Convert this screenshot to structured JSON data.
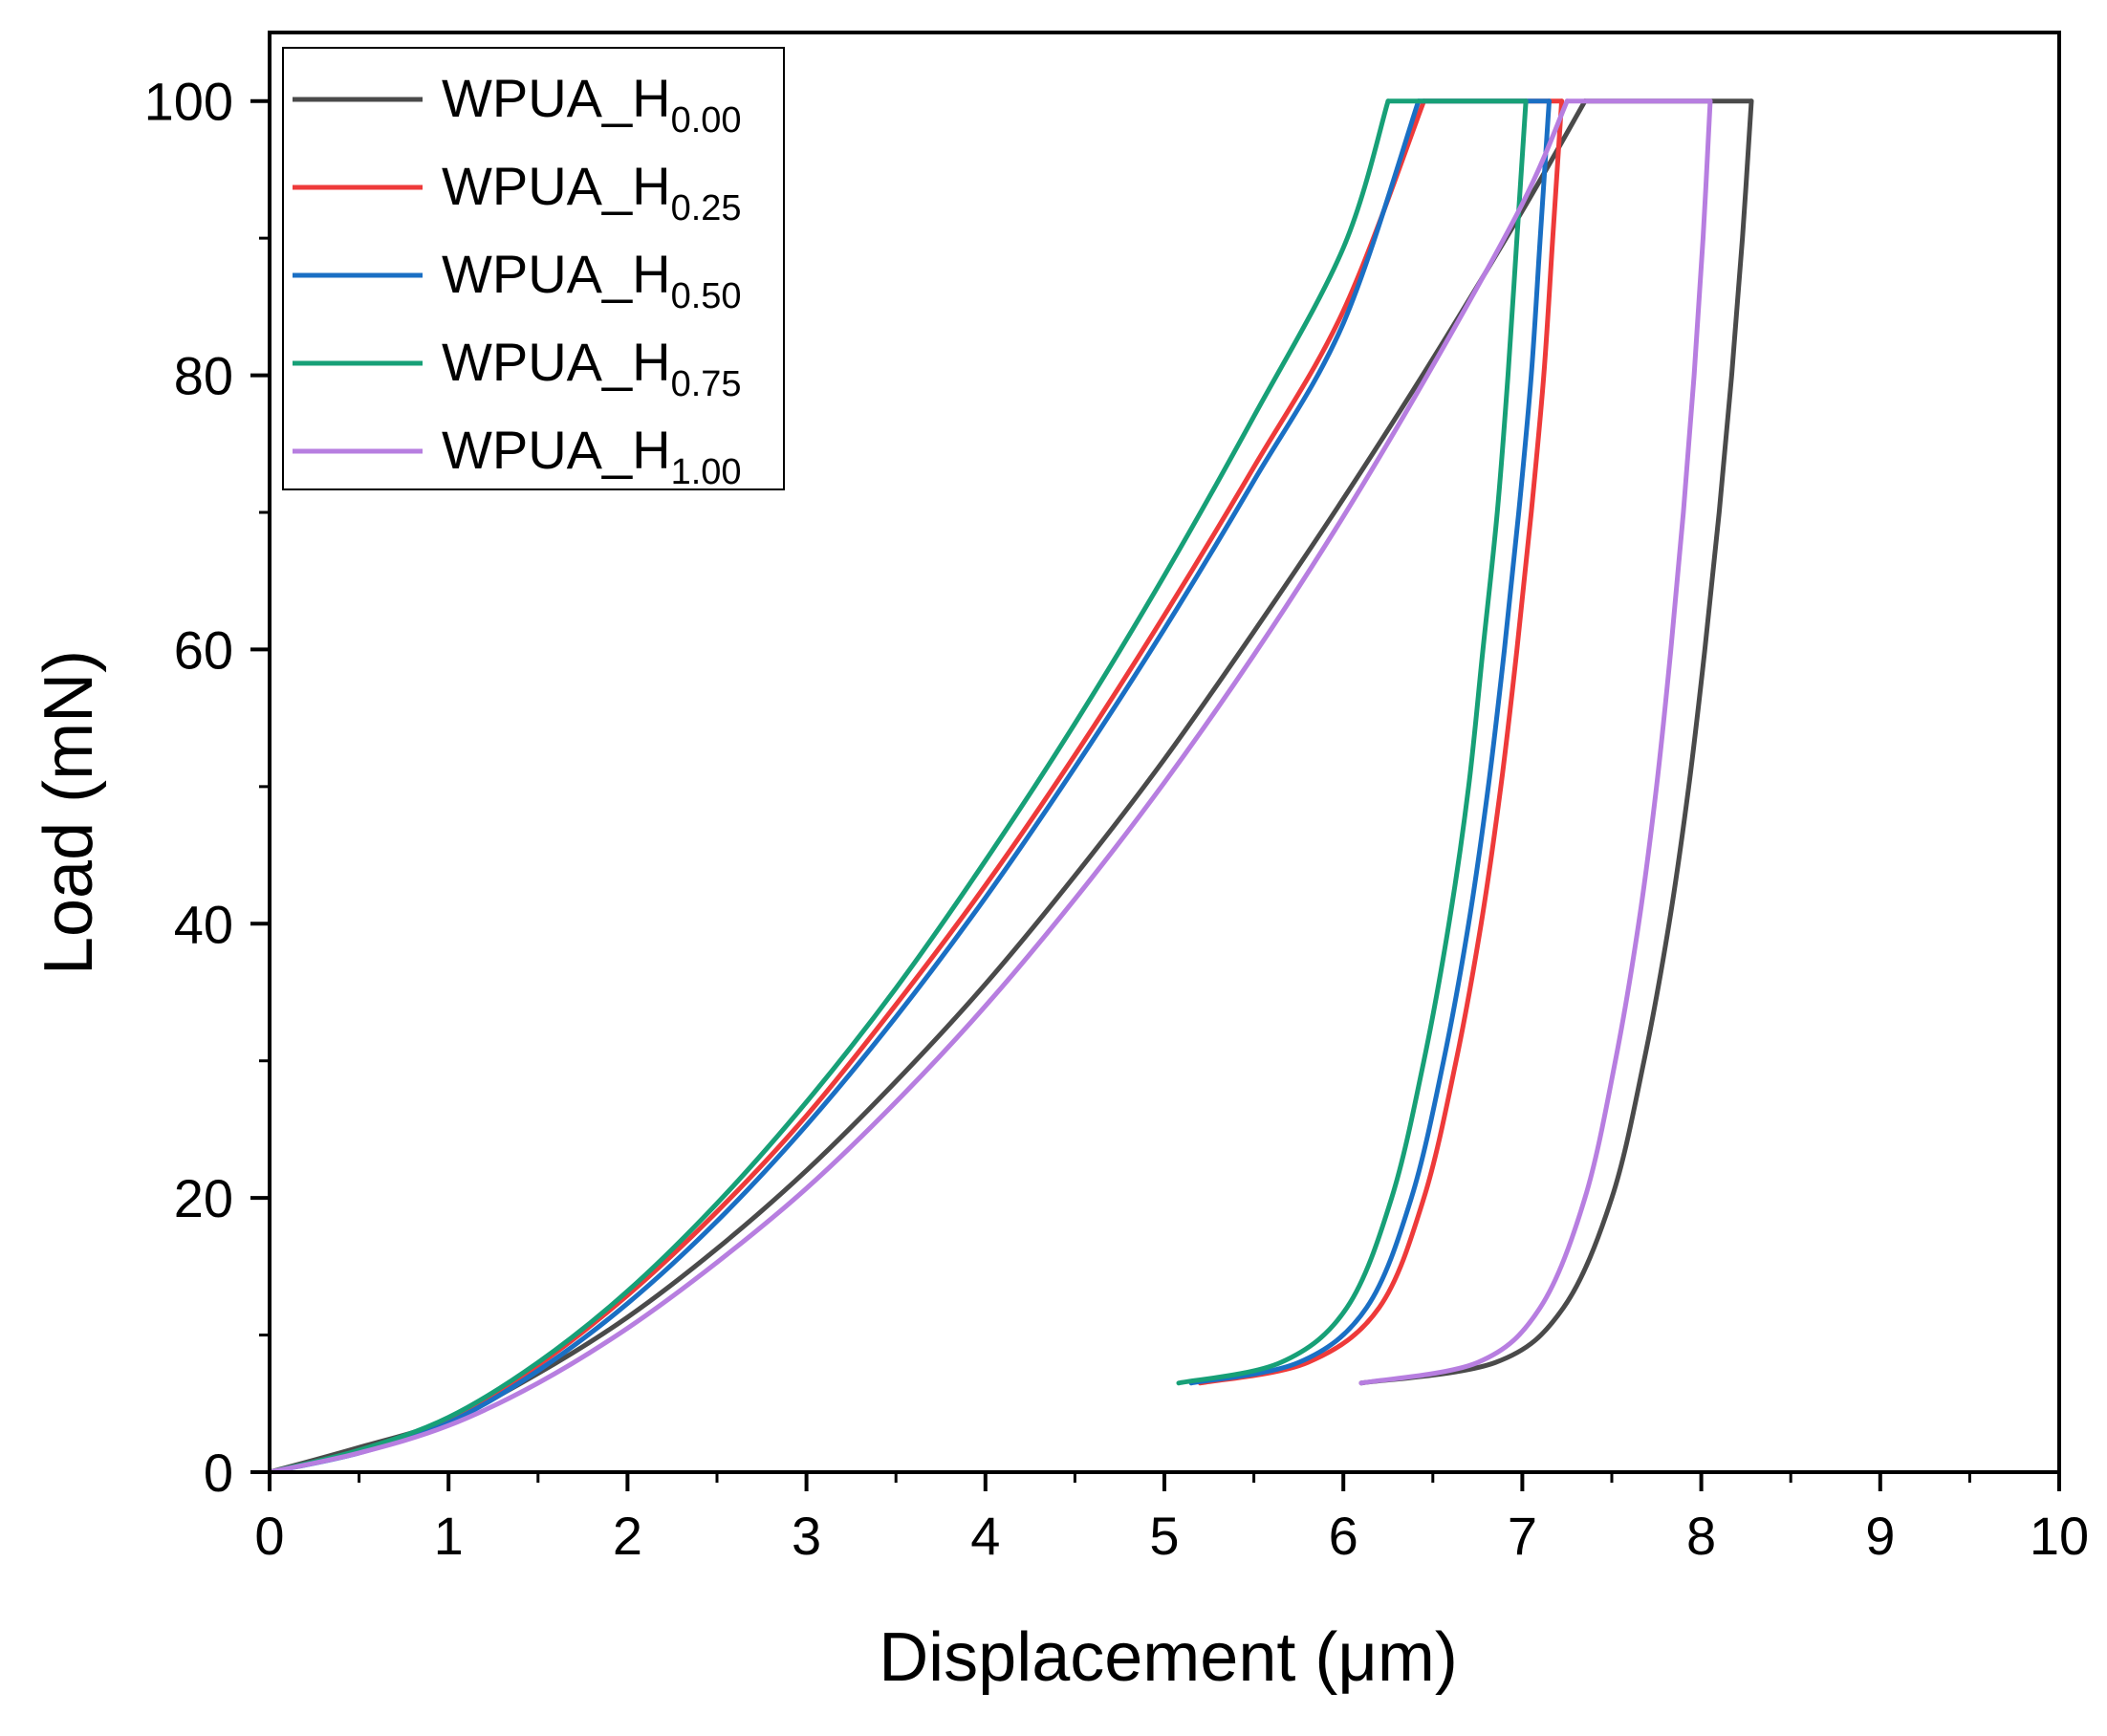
{
  "chart_data": {
    "type": "line",
    "title": "",
    "xlabel": "Displacement (μm)",
    "ylabel": "Load (mN)",
    "xlim": [
      0,
      10
    ],
    "ylim": [
      0,
      105
    ],
    "x_ticks": [
      0,
      1,
      2,
      3,
      4,
      5,
      6,
      7,
      8,
      9,
      10
    ],
    "x_tick_labels": [
      "0",
      "1",
      "2",
      "3",
      "4",
      "5",
      "6",
      "7",
      "8",
      "9",
      "10"
    ],
    "y_ticks": [
      0,
      20,
      40,
      60,
      80,
      100
    ],
    "y_tick_labels": [
      "0",
      "20",
      "40",
      "60",
      "80",
      "100"
    ],
    "grid": false,
    "legend_position": "top-left",
    "series": [
      {
        "name": "WPUA_H0.00",
        "label_base": "WPUA_H",
        "label_sub": "0.00",
        "color": "#4a4a4a",
        "loading": [
          [
            0,
            0
          ],
          [
            0.5,
            1.8
          ],
          [
            1,
            3.8
          ],
          [
            1.5,
            7.2
          ],
          [
            2,
            11.3
          ],
          [
            2.5,
            16.3
          ],
          [
            3,
            22
          ],
          [
            3.5,
            28.5
          ],
          [
            4,
            35.6
          ],
          [
            4.5,
            43.5
          ],
          [
            5,
            52
          ],
          [
            5.5,
            61.3
          ],
          [
            6,
            71
          ],
          [
            6.5,
            81.2
          ],
          [
            7,
            92
          ],
          [
            7.35,
            100
          ]
        ],
        "hold": [
          [
            7.35,
            100
          ],
          [
            8.28,
            100
          ]
        ],
        "unloading": [
          [
            8.28,
            100
          ],
          [
            8.23,
            90
          ],
          [
            8.17,
            80
          ],
          [
            8.1,
            70
          ],
          [
            8.02,
            60
          ],
          [
            7.93,
            50
          ],
          [
            7.82,
            40
          ],
          [
            7.68,
            30
          ],
          [
            7.5,
            20
          ],
          [
            7.23,
            12
          ],
          [
            6.85,
            8
          ],
          [
            6.1,
            6.5
          ]
        ]
      },
      {
        "name": "WPUA_H0.25",
        "label_base": "WPUA_H",
        "label_sub": "0.25",
        "color": "#ee3a3a",
        "loading": [
          [
            0,
            0
          ],
          [
            0.5,
            1.5
          ],
          [
            1,
            3.8
          ],
          [
            1.5,
            7.8
          ],
          [
            2,
            12.9
          ],
          [
            2.5,
            19
          ],
          [
            3,
            26
          ],
          [
            3.5,
            34.1
          ],
          [
            4,
            42.8
          ],
          [
            4.5,
            52.3
          ],
          [
            5,
            62.5
          ],
          [
            5.5,
            73.3
          ],
          [
            6,
            84.7
          ],
          [
            6.45,
            100
          ]
        ],
        "hold": [
          [
            6.45,
            100
          ],
          [
            7.22,
            100
          ]
        ],
        "unloading": [
          [
            7.22,
            100
          ],
          [
            7.17,
            90
          ],
          [
            7.12,
            80
          ],
          [
            7.05,
            70
          ],
          [
            6.97,
            60
          ],
          [
            6.88,
            50
          ],
          [
            6.77,
            40
          ],
          [
            6.63,
            30
          ],
          [
            6.45,
            20
          ],
          [
            6.2,
            12
          ],
          [
            5.8,
            8
          ],
          [
            5.2,
            6.5
          ]
        ]
      },
      {
        "name": "WPUA_H0.50",
        "label_base": "WPUA_H",
        "label_sub": "0.50",
        "color": "#1a6fc4",
        "loading": [
          [
            0,
            0
          ],
          [
            0.5,
            1.4
          ],
          [
            1,
            3.6
          ],
          [
            1.5,
            7.4
          ],
          [
            2,
            12.3
          ],
          [
            2.5,
            18.3
          ],
          [
            3,
            25.3
          ],
          [
            3.5,
            33.2
          ],
          [
            4,
            41.9
          ],
          [
            4.5,
            51.4
          ],
          [
            5,
            61.5
          ],
          [
            5.5,
            72.3
          ],
          [
            6,
            83.8
          ],
          [
            6.42,
            100
          ]
        ],
        "hold": [
          [
            6.42,
            100
          ],
          [
            7.15,
            100
          ]
        ],
        "unloading": [
          [
            7.15,
            100
          ],
          [
            7.1,
            90
          ],
          [
            7.05,
            80
          ],
          [
            6.98,
            70
          ],
          [
            6.9,
            60
          ],
          [
            6.81,
            50
          ],
          [
            6.7,
            40
          ],
          [
            6.56,
            30
          ],
          [
            6.38,
            20
          ],
          [
            6.13,
            12
          ],
          [
            5.75,
            8
          ],
          [
            5.15,
            6.5
          ]
        ]
      },
      {
        "name": "WPUA_H0.75",
        "label_base": "WPUA_H",
        "label_sub": "0.75",
        "color": "#17a077",
        "loading": [
          [
            0,
            0
          ],
          [
            0.5,
            1.6
          ],
          [
            1,
            4
          ],
          [
            1.5,
            8
          ],
          [
            2,
            13.2
          ],
          [
            2.5,
            19.6
          ],
          [
            3,
            27
          ],
          [
            3.5,
            35.3
          ],
          [
            4,
            44.6
          ],
          [
            4.5,
            54.6
          ],
          [
            5,
            65.4
          ],
          [
            5.5,
            77
          ],
          [
            6,
            89.3
          ],
          [
            6.25,
            100
          ]
        ],
        "hold": [
          [
            6.25,
            100
          ],
          [
            7.02,
            100
          ]
        ],
        "unloading": [
          [
            7.02,
            100
          ],
          [
            6.97,
            90
          ],
          [
            6.92,
            80
          ],
          [
            6.86,
            70
          ],
          [
            6.78,
            60
          ],
          [
            6.7,
            50
          ],
          [
            6.59,
            40
          ],
          [
            6.45,
            30
          ],
          [
            6.27,
            20
          ],
          [
            6.02,
            12
          ],
          [
            5.65,
            8
          ],
          [
            5.08,
            6.5
          ]
        ]
      },
      {
        "name": "WPUA_H1.00",
        "label_base": "WPUA_H",
        "label_sub": "1.00",
        "color": "#b77ee0",
        "loading": [
          [
            0,
            0
          ],
          [
            0.5,
            1.4
          ],
          [
            1,
            3.4
          ],
          [
            1.5,
            6.5
          ],
          [
            2,
            10.5
          ],
          [
            2.5,
            15.3
          ],
          [
            3,
            20.7
          ],
          [
            3.5,
            27
          ],
          [
            4,
            34
          ],
          [
            4.5,
            41.8
          ],
          [
            5,
            50.3
          ],
          [
            5.5,
            59.6
          ],
          [
            6,
            69.7
          ],
          [
            6.5,
            80.7
          ],
          [
            7,
            92.5
          ],
          [
            7.25,
            100
          ]
        ],
        "hold": [
          [
            7.25,
            100
          ],
          [
            8.05,
            100
          ]
        ],
        "unloading": [
          [
            8.05,
            100
          ],
          [
            8.01,
            90
          ],
          [
            7.96,
            80
          ],
          [
            7.9,
            70
          ],
          [
            7.83,
            60
          ],
          [
            7.75,
            50
          ],
          [
            7.65,
            40
          ],
          [
            7.52,
            30
          ],
          [
            7.35,
            20
          ],
          [
            7.1,
            12
          ],
          [
            6.75,
            8
          ],
          [
            6.1,
            6.5
          ]
        ]
      }
    ]
  }
}
